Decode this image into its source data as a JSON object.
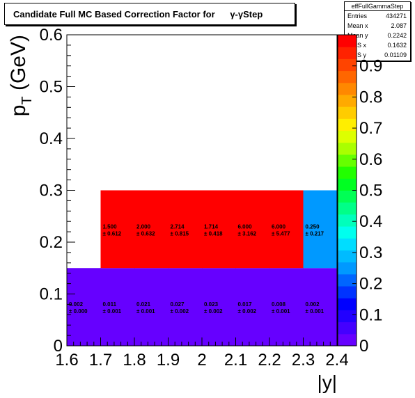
{
  "title": "Candidate Full MC Based Correction Factor for      γ-γStep",
  "stats": {
    "name": "effFullGammaStep",
    "rows": [
      {
        "label": "Entries",
        "value": "434271"
      },
      {
        "label": "Mean x",
        "value": "2.087"
      },
      {
        "label": "Mean y",
        "value": "0.2242"
      },
      {
        "label": "RMS x",
        "value": "0.1632"
      },
      {
        "label": "RMS y",
        "value": "0.01109"
      }
    ]
  },
  "chart_data": {
    "type": "heatmap",
    "title": "Candidate Full MC Based Correction Factor for      γ-γStep",
    "xlabel": "|y|",
    "ylabel": "p_T (GeV)",
    "xlim": [
      1.6,
      2.4
    ],
    "ylim": [
      0,
      0.6
    ],
    "zlim": [
      0,
      1
    ],
    "x_ticks": [
      "1.6",
      "1.7",
      "1.8",
      "1.9",
      "2",
      "2.1",
      "2.2",
      "2.3",
      "2.4"
    ],
    "y_ticks": [
      "0",
      "0.1",
      "0.2",
      "0.3",
      "0.4",
      "0.5",
      "0.6"
    ],
    "z_ticks": [
      "0",
      "0.1",
      "0.2",
      "0.3",
      "0.4",
      "0.5",
      "0.6",
      "0.7",
      "0.8",
      "0.9"
    ],
    "colormap": [
      "#6600ff",
      "#4400ff",
      "#2200ff",
      "#0000ff",
      "#0033ff",
      "#0066ff",
      "#0099ff",
      "#00bbff",
      "#00ddff",
      "#00ffee",
      "#00ffbb",
      "#00ff88",
      "#00ff55",
      "#00ff22",
      "#22ff00",
      "#66ff00",
      "#aaff00",
      "#ddff00",
      "#ffee00",
      "#ffcc00",
      "#ffaa00",
      "#ff8800",
      "#ff6600",
      "#ff4400",
      "#ff2200",
      "#ff0000"
    ],
    "x_edges": [
      1.6,
      1.7,
      1.8,
      1.9,
      2.0,
      2.1,
      2.2,
      2.3,
      2.4
    ],
    "y_edges": [
      0,
      0.15,
      0.3
    ],
    "cells": [
      {
        "ix": 0,
        "iy": 0,
        "value": 0.002,
        "label": "0.002",
        "err": "± 0.000"
      },
      {
        "ix": 1,
        "iy": 0,
        "value": 0.011,
        "label": "0.011",
        "err": "± 0.001"
      },
      {
        "ix": 2,
        "iy": 0,
        "value": 0.021,
        "label": "0.021",
        "err": "± 0.001"
      },
      {
        "ix": 3,
        "iy": 0,
        "value": 0.027,
        "label": "0.027",
        "err": "± 0.002"
      },
      {
        "ix": 4,
        "iy": 0,
        "value": 0.023,
        "label": "0.023",
        "err": "± 0.002"
      },
      {
        "ix": 5,
        "iy": 0,
        "value": 0.017,
        "label": "0.017",
        "err": "± 0.002"
      },
      {
        "ix": 6,
        "iy": 0,
        "value": 0.008,
        "label": "0.008",
        "err": "± 0.001"
      },
      {
        "ix": 7,
        "iy": 0,
        "value": 0.002,
        "label": "0.002",
        "err": "± 0.001"
      },
      {
        "ix": 1,
        "iy": 1,
        "value": 1.5,
        "label": "1.500",
        "err": "± 0.612"
      },
      {
        "ix": 2,
        "iy": 1,
        "value": 2.0,
        "label": "2.000",
        "err": "± 0.632"
      },
      {
        "ix": 3,
        "iy": 1,
        "value": 2.714,
        "label": "2.714",
        "err": "± 0.815"
      },
      {
        "ix": 4,
        "iy": 1,
        "value": 1.714,
        "label": "1.714",
        "err": "± 0.418"
      },
      {
        "ix": 5,
        "iy": 1,
        "value": 6.0,
        "label": "6.000",
        "err": "± 3.162"
      },
      {
        "ix": 6,
        "iy": 1,
        "value": 6.0,
        "label": "6.000",
        "err": "± 5.477"
      },
      {
        "ix": 7,
        "iy": 1,
        "value": 0.25,
        "label": "0.250",
        "err": "± 0.217"
      }
    ]
  }
}
